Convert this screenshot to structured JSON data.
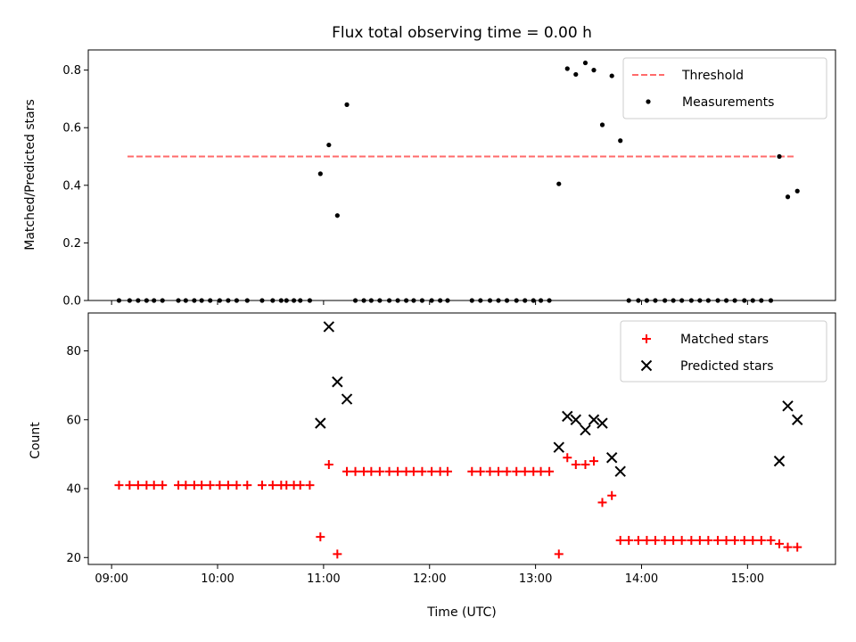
{
  "chart_data": [
    {
      "type": "scatter",
      "title": "Flux total observing time = 0.00 h",
      "xlabel": "",
      "ylabel": "Matched/Predicted stars",
      "xlim_hours": [
        8.78,
        15.83
      ],
      "ylim": [
        0,
        0.87
      ],
      "yticks": [
        "0.0",
        "0.2",
        "0.4",
        "0.6",
        "0.8"
      ],
      "legend_position": "top-right",
      "threshold": {
        "name": "Threshold",
        "value": 0.5,
        "x_range_hours": [
          9.15,
          15.45
        ],
        "color": "#ff6b6b",
        "style": "dashed"
      },
      "series": [
        {
          "name": "Measurements",
          "color": "#000000",
          "marker": "dot",
          "x_hours": [
            9.07,
            9.17,
            9.25,
            9.33,
            9.4,
            9.48,
            9.63,
            9.7,
            9.78,
            9.85,
            9.93,
            10.02,
            10.1,
            10.18,
            10.28,
            10.42,
            10.52,
            10.6,
            10.65,
            10.72,
            10.78,
            10.87,
            10.97,
            11.05,
            11.13,
            11.22,
            11.3,
            11.38,
            11.45,
            11.53,
            11.62,
            11.7,
            11.78,
            11.85,
            11.93,
            12.02,
            12.1,
            12.17,
            12.4,
            12.48,
            12.57,
            12.65,
            12.73,
            12.82,
            12.9,
            12.98,
            13.05,
            13.13,
            13.22,
            13.3,
            13.38,
            13.47,
            13.55,
            13.63,
            13.72,
            13.8,
            13.88,
            13.97,
            14.05,
            14.13,
            14.22,
            14.3,
            14.38,
            14.47,
            14.55,
            14.63,
            14.72,
            14.8,
            14.88,
            14.97,
            15.05,
            15.13,
            15.22,
            15.3,
            15.38,
            15.47
          ],
          "y": [
            0,
            0,
            0,
            0,
            0,
            0,
            0,
            0,
            0,
            0,
            0,
            0,
            0,
            0,
            0,
            0,
            0,
            0,
            0,
            0,
            0,
            0,
            0.44,
            0.54,
            0.295,
            0.68,
            0,
            0,
            0,
            0,
            0,
            0,
            0,
            0,
            0,
            0,
            0,
            0,
            0,
            0,
            0,
            0,
            0,
            0,
            0,
            0,
            0,
            0,
            0.405,
            0.805,
            0.785,
            0.825,
            0.8,
            0.61,
            0.78,
            0.555,
            0,
            0,
            0,
            0,
            0,
            0,
            0,
            0,
            0,
            0,
            0,
            0,
            0,
            0,
            0,
            0,
            0,
            0.5,
            0.36,
            0.38
          ]
        }
      ]
    },
    {
      "type": "scatter",
      "title": "",
      "xlabel": "Time (UTC)",
      "ylabel": "Count",
      "xlim_hours": [
        8.78,
        15.83
      ],
      "ylim": [
        18,
        91
      ],
      "yticks": [
        "20",
        "40",
        "60",
        "80"
      ],
      "xticks": [
        "09:00",
        "10:00",
        "11:00",
        "12:00",
        "13:00",
        "14:00",
        "15:00"
      ],
      "legend_position": "top-right",
      "series": [
        {
          "name": "Matched stars",
          "color": "#ff0000",
          "marker": "plus",
          "x_hours": [
            9.07,
            9.17,
            9.25,
            9.33,
            9.4,
            9.48,
            9.63,
            9.7,
            9.78,
            9.85,
            9.93,
            10.02,
            10.1,
            10.18,
            10.28,
            10.42,
            10.52,
            10.6,
            10.65,
            10.72,
            10.78,
            10.87,
            10.97,
            11.05,
            11.13,
            11.22,
            11.3,
            11.38,
            11.45,
            11.53,
            11.62,
            11.7,
            11.78,
            11.85,
            11.93,
            12.02,
            12.1,
            12.17,
            12.4,
            12.48,
            12.57,
            12.65,
            12.73,
            12.82,
            12.9,
            12.98,
            13.05,
            13.13,
            13.22,
            13.3,
            13.38,
            13.47,
            13.55,
            13.63,
            13.72,
            13.8,
            13.88,
            13.97,
            14.05,
            14.13,
            14.22,
            14.3,
            14.38,
            14.47,
            14.55,
            14.63,
            14.72,
            14.8,
            14.88,
            14.97,
            15.05,
            15.13,
            15.22,
            15.3,
            15.38,
            15.47
          ],
          "y": [
            41,
            41,
            41,
            41,
            41,
            41,
            41,
            41,
            41,
            41,
            41,
            41,
            41,
            41,
            41,
            41,
            41,
            41,
            41,
            41,
            41,
            41,
            26,
            47,
            21,
            45,
            45,
            45,
            45,
            45,
            45,
            45,
            45,
            45,
            45,
            45,
            45,
            45,
            45,
            45,
            45,
            45,
            45,
            45,
            45,
            45,
            45,
            45,
            21,
            49,
            47,
            47,
            48,
            36,
            38,
            25,
            25,
            25,
            25,
            25,
            25,
            25,
            25,
            25,
            25,
            25,
            25,
            25,
            25,
            25,
            25,
            25,
            25,
            24,
            23,
            23
          ]
        },
        {
          "name": "Predicted stars",
          "color": "#000000",
          "marker": "x",
          "x_hours": [
            10.97,
            11.05,
            11.13,
            11.22,
            13.22,
            13.3,
            13.38,
            13.47,
            13.55,
            13.63,
            13.72,
            13.8,
            15.3,
            15.38,
            15.47
          ],
          "y": [
            59,
            87,
            71,
            66,
            52,
            61,
            60,
            57,
            60,
            59,
            49,
            45,
            48,
            64,
            60
          ]
        }
      ]
    }
  ]
}
